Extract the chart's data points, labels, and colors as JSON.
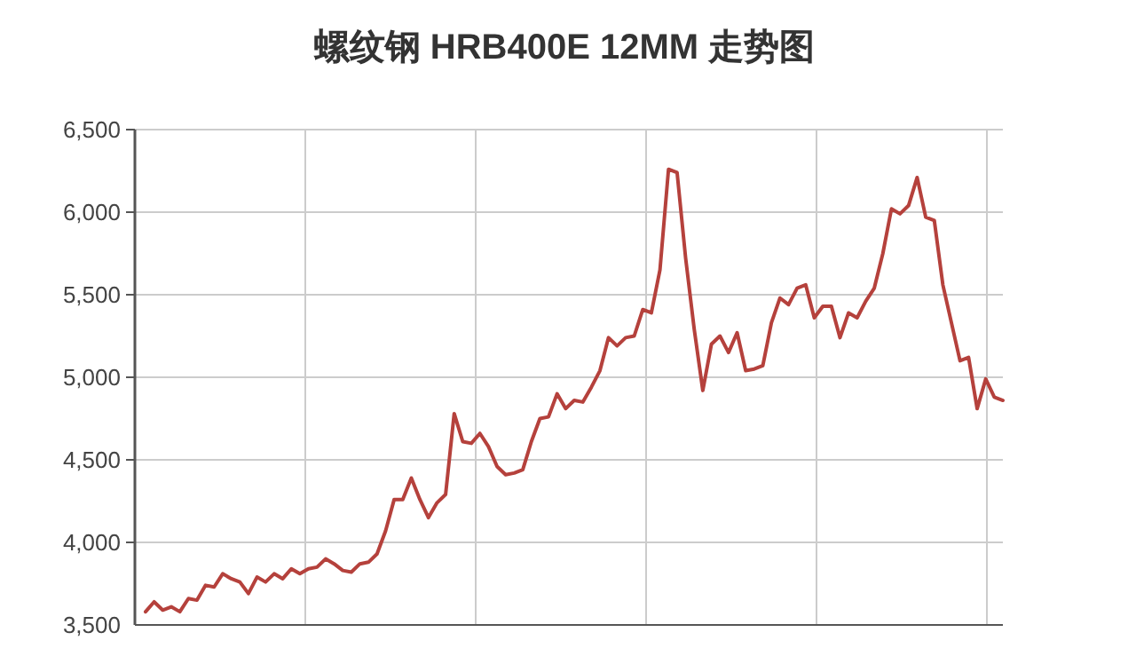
{
  "chart_data": {
    "type": "line",
    "title": "螺纹钢 HRB400E 12MM 走势图",
    "categories": [
      null,
      null,
      null,
      null,
      null,
      null,
      null,
      null,
      null,
      null,
      null,
      null,
      null,
      null,
      null,
      null,
      null,
      null,
      null,
      null,
      null,
      null,
      null,
      null,
      null,
      null,
      null,
      null,
      null,
      null,
      null,
      null,
      null,
      null,
      null,
      null,
      null,
      null,
      null,
      null,
      null,
      null,
      null,
      null,
      null,
      null,
      null,
      null,
      null,
      null,
      null,
      null,
      null,
      null,
      null,
      null,
      null,
      null,
      null,
      null,
      null,
      null,
      null,
      null,
      null,
      null,
      null,
      null,
      null,
      null,
      null,
      null,
      null,
      null,
      null,
      null,
      null,
      null,
      null,
      null,
      null,
      null,
      null,
      null,
      null,
      null,
      null,
      null,
      null,
      null,
      null,
      null,
      null,
      null,
      null,
      null,
      null,
      null,
      null,
      null,
      null
    ],
    "ylim": [
      3500,
      6500
    ],
    "yticks": [
      {
        "value": 3500,
        "label": "3,500"
      },
      {
        "value": 4000,
        "label": "4,000"
      },
      {
        "value": 4500,
        "label": "4,500"
      },
      {
        "value": 5000,
        "label": "5,000"
      },
      {
        "value": 5500,
        "label": "5,500"
      },
      {
        "value": 6000,
        "label": "6,000"
      },
      {
        "value": 6500,
        "label": "6,500"
      }
    ],
    "grid": true,
    "tick_labels": "y",
    "marker": "none",
    "line_style": "solid",
    "series": [
      {
        "color": "#b5413c",
        "values": [
          3580,
          3640,
          3590,
          3610,
          3580,
          3660,
          3650,
          3740,
          3730,
          3810,
          3780,
          3760,
          3690,
          3790,
          3760,
          3810,
          3780,
          3840,
          3810,
          3840,
          3850,
          3900,
          3870,
          3830,
          3820,
          3870,
          3880,
          3930,
          4070,
          4260,
          4260,
          4390,
          4260,
          4150,
          4240,
          4290,
          4780,
          4610,
          4600,
          4660,
          4580,
          4460,
          4410,
          4420,
          4440,
          4610,
          4750,
          4760,
          4900,
          4810,
          4860,
          4850,
          4940,
          5040,
          5240,
          5190,
          5240,
          5250,
          5410,
          5390,
          5650,
          6260,
          6240,
          5720,
          5290,
          4920,
          5200,
          5250,
          5150,
          5270,
          5040,
          5050,
          5070,
          5330,
          5480,
          5440,
          5540,
          5560,
          5360,
          5430,
          5430,
          5240,
          5390,
          5360,
          5460,
          5540,
          5750,
          6020,
          5990,
          6040,
          6210,
          5970,
          5950,
          5560,
          5330,
          5100,
          5120,
          4810,
          4990,
          4880,
          4860
        ]
      }
    ]
  }
}
